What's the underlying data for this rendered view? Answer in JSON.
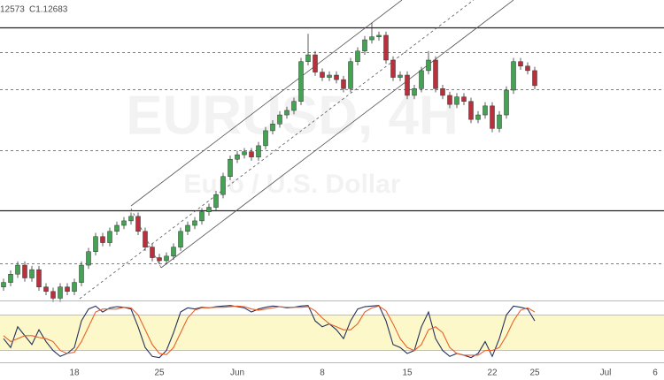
{
  "chart_data": {
    "type": "candlestick",
    "header": [
      "12573",
      "C1.12683"
    ],
    "watermark": "EURUSD, 4H",
    "watermark_subtitle": "Euro / U.S. Dollar",
    "up_color": "#43a352",
    "down_color": "#b8303b",
    "ylim": [
      1.104,
      1.144
    ],
    "categories": [
      null,
      null,
      null,
      null,
      null,
      null,
      null,
      null,
      null,
      null,
      "18",
      null,
      null,
      null,
      null,
      null,
      null,
      null,
      null,
      null,
      null,
      null,
      "25",
      null,
      null,
      null,
      null,
      null,
      null,
      null,
      null,
      null,
      null,
      "Jun",
      null,
      null,
      null,
      null,
      null,
      null,
      null,
      null,
      null,
      null,
      null,
      "8",
      null,
      null,
      null,
      null,
      null,
      null,
      null,
      null,
      null,
      null,
      null,
      "15",
      null,
      null,
      null,
      null,
      null,
      null,
      null,
      null,
      null,
      null,
      null,
      "22",
      null,
      null,
      null,
      null,
      null,
      "25",
      null,
      null,
      null,
      null,
      null,
      null,
      null,
      null,
      null,
      "Jul",
      null,
      null,
      null,
      null,
      null,
      null,
      "6"
    ],
    "open": [
      1.1058,
      1.1064,
      1.1075,
      1.1087,
      1.107,
      1.1081,
      1.1058,
      1.1052,
      1.1043,
      1.1058,
      1.1052,
      1.1064,
      1.1087,
      1.1105,
      1.1125,
      1.1117,
      1.1132,
      1.114,
      1.1146,
      1.1152,
      1.1132,
      1.1111,
      1.1097,
      1.1093,
      1.1099,
      1.1111,
      1.1132,
      1.114,
      1.1146,
      1.1158,
      1.1164,
      1.1181,
      1.1205,
      1.1228,
      1.1234,
      1.1238,
      1.1231,
      1.1246,
      1.1266,
      1.1275,
      1.1287,
      1.1293,
      1.1305,
      1.1358,
      1.1367,
      1.1344,
      1.1337,
      1.134,
      1.1334,
      1.1322,
      1.1358,
      1.1372,
      1.1387,
      1.1391,
      1.1393,
      1.136,
      1.1337,
      1.134,
      1.1313,
      1.1322,
      1.1346,
      1.136,
      1.1322,
      1.1313,
      1.1301,
      1.1311,
      1.1305,
      1.1281,
      1.1287,
      1.1299,
      1.1269,
      1.1287,
      1.132,
      1.1358,
      1.1352,
      1.1346,
      null,
      null,
      null,
      null,
      null,
      null,
      null,
      null,
      null,
      null,
      null,
      null,
      null,
      null,
      null,
      null,
      null
    ],
    "high": [
      1.1069,
      1.108,
      1.1092,
      1.1092,
      1.1086,
      1.1086,
      1.1063,
      1.1057,
      1.1063,
      1.1063,
      1.1069,
      1.1092,
      1.111,
      1.113,
      1.113,
      1.1137,
      1.1145,
      1.1151,
      1.1157,
      1.1157,
      1.1137,
      1.1116,
      1.1102,
      1.1104,
      1.1116,
      1.1137,
      1.1145,
      1.1151,
      1.1163,
      1.1169,
      1.1186,
      1.121,
      1.1233,
      1.1239,
      1.1243,
      1.1243,
      1.1251,
      1.1271,
      1.128,
      1.1292,
      1.1298,
      1.131,
      1.1363,
      1.1395,
      1.1372,
      1.1349,
      1.1345,
      1.1345,
      1.1339,
      1.1363,
      1.1377,
      1.1392,
      1.141,
      1.1398,
      1.1398,
      1.1365,
      1.1345,
      1.1345,
      1.1327,
      1.1351,
      1.1372,
      1.1365,
      1.1327,
      1.1318,
      1.1316,
      1.1316,
      1.131,
      1.1292,
      1.1304,
      1.1304,
      1.1292,
      1.1325,
      1.1363,
      1.1363,
      1.1357,
      1.1351,
      null,
      null,
      null,
      null,
      null,
      null,
      null,
      null,
      null,
      null,
      null,
      null,
      null,
      null,
      null,
      null,
      null
    ],
    "low": [
      1.1053,
      1.1059,
      1.107,
      1.1065,
      1.1065,
      1.1053,
      1.1047,
      1.1038,
      1.1038,
      1.1047,
      1.1047,
      1.1059,
      1.1082,
      1.11,
      1.1112,
      1.1112,
      1.1127,
      1.1135,
      1.1141,
      1.1127,
      1.1106,
      1.1092,
      1.1088,
      1.1088,
      1.1094,
      1.1106,
      1.1127,
      1.1135,
      1.1141,
      1.1153,
      1.1159,
      1.1176,
      1.12,
      1.1223,
      1.1229,
      1.1226,
      1.1226,
      1.1241,
      1.1261,
      1.127,
      1.1282,
      1.1288,
      1.13,
      1.1353,
      1.1339,
      1.1332,
      1.1332,
      1.1329,
      1.1317,
      1.1317,
      1.1353,
      1.1367,
      1.1382,
      1.1386,
      1.1355,
      1.1332,
      1.1332,
      1.1308,
      1.1308,
      1.1317,
      1.1341,
      1.1317,
      1.1308,
      1.1296,
      1.1296,
      1.13,
      1.1276,
      1.1276,
      1.1282,
      1.1264,
      1.1264,
      1.1282,
      1.1315,
      1.1347,
      1.1341,
      1.1321,
      null,
      null,
      null,
      null,
      null,
      null,
      null,
      null,
      null,
      null,
      null,
      null,
      null,
      null,
      null,
      null,
      null
    ],
    "close": [
      1.1064,
      1.1075,
      1.1087,
      1.107,
      1.1081,
      1.1058,
      1.1052,
      1.1043,
      1.1058,
      1.1052,
      1.1064,
      1.1087,
      1.1105,
      1.1125,
      1.1117,
      1.1132,
      1.114,
      1.1146,
      1.1152,
      1.1132,
      1.1111,
      1.1097,
      1.1093,
      1.1099,
      1.1111,
      1.1132,
      1.114,
      1.1146,
      1.1158,
      1.1164,
      1.1181,
      1.1205,
      1.1228,
      1.1234,
      1.1238,
      1.1231,
      1.1246,
      1.1266,
      1.1275,
      1.1287,
      1.1293,
      1.1305,
      1.1358,
      1.1367,
      1.1344,
      1.1337,
      1.134,
      1.1334,
      1.1322,
      1.1358,
      1.1372,
      1.1387,
      1.1391,
      1.1393,
      1.136,
      1.1337,
      1.134,
      1.1313,
      1.1322,
      1.1346,
      1.136,
      1.1322,
      1.1313,
      1.1301,
      1.1311,
      1.1305,
      1.1281,
      1.1287,
      1.1299,
      1.1269,
      1.1287,
      1.132,
      1.1358,
      1.1352,
      1.1346,
      1.1326,
      null,
      null,
      null,
      null,
      null,
      null,
      null,
      null,
      null,
      null,
      null,
      null,
      null,
      null,
      null,
      null,
      null
    ],
    "levels": [
      {
        "value": 1.1404,
        "style": "solid"
      },
      {
        "value": 1.116,
        "style": "solid"
      },
      {
        "value": 1.1371,
        "style": "dashed"
      },
      {
        "value": 1.1321,
        "style": "dashed"
      },
      {
        "value": 1.124,
        "style": "dashed"
      },
      {
        "value": 1.109,
        "style": "dashed"
      }
    ],
    "oscillator": {
      "ylim": [
        0,
        100
      ],
      "bands": [
        20,
        80
      ],
      "band_color": "#fdf8c9",
      "series": [
        {
          "color": "#26305e",
          "values": [
            40,
            25,
            60,
            45,
            30,
            55,
            35,
            20,
            10,
            15,
            25,
            70,
            90,
            95,
            85,
            92,
            94,
            93,
            90,
            60,
            25,
            10,
            8,
            20,
            50,
            85,
            92,
            90,
            93,
            92,
            94,
            95,
            96,
            94,
            92,
            85,
            90,
            93,
            95,
            94,
            92,
            93,
            95,
            96,
            70,
            60,
            65,
            55,
            40,
            70,
            90,
            94,
            95,
            96,
            70,
            30,
            25,
            15,
            20,
            60,
            85,
            40,
            20,
            10,
            15,
            12,
            8,
            15,
            35,
            10,
            40,
            80,
            95,
            93,
            90,
            70,
            null,
            null,
            null,
            null,
            null,
            null,
            null,
            null,
            null,
            null,
            null,
            null,
            null,
            null,
            null,
            null,
            null
          ]
        },
        {
          "color": "#e8602a",
          "values": [
            45,
            35,
            40,
            45,
            45,
            42,
            40,
            35,
            20,
            15,
            17,
            35,
            60,
            85,
            90,
            90,
            90,
            93,
            92,
            80,
            55,
            30,
            15,
            13,
            25,
            50,
            75,
            88,
            92,
            92,
            93,
            93,
            94,
            95,
            94,
            90,
            88,
            90,
            92,
            94,
            93,
            93,
            93,
            94,
            87,
            75,
            65,
            60,
            55,
            55,
            65,
            85,
            92,
            95,
            87,
            65,
            40,
            25,
            20,
            30,
            55,
            60,
            50,
            25,
            15,
            12,
            12,
            12,
            20,
            20,
            25,
            45,
            70,
            88,
            92,
            85,
            null,
            null,
            null,
            null,
            null,
            null,
            null,
            null,
            null,
            null,
            null,
            null,
            null,
            null,
            null,
            null,
            null
          ]
        }
      ]
    }
  }
}
